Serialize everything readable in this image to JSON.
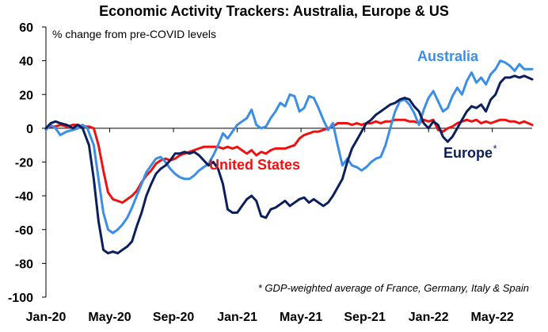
{
  "chart_data": {
    "type": "line",
    "title": "Economic Activity Trackers: Australia, Europe & US",
    "ylabel": "% change from pre-COVID levels",
    "footnote": "* GDP-weighted average of France, Germany, Italy & Spain",
    "ylim": [
      -100,
      60
    ],
    "yticks": [
      60,
      40,
      20,
      0,
      -20,
      -40,
      -60,
      -80,
      -100
    ],
    "xticks": [
      "Jan-20",
      "May-20",
      "Sep-20",
      "Jan-21",
      "May-21",
      "Sep-21",
      "Jan-22",
      "May-22"
    ],
    "xlim_months": [
      0,
      30.5
    ],
    "grid": false,
    "series": [
      {
        "name": "Australia",
        "label": "Australia",
        "color": "#3b8ee6",
        "points": [
          [
            0.0,
            -1
          ],
          [
            0.3,
            2
          ],
          [
            0.6,
            0
          ],
          [
            0.9,
            -4
          ],
          [
            1.3,
            -2
          ],
          [
            1.7,
            -1
          ],
          [
            2.0,
            0
          ],
          [
            2.3,
            2
          ],
          [
            2.6,
            0
          ],
          [
            3.0,
            -10
          ],
          [
            3.3,
            -30
          ],
          [
            3.6,
            -50
          ],
          [
            3.9,
            -60
          ],
          [
            4.2,
            -62
          ],
          [
            4.5,
            -60
          ],
          [
            4.8,
            -57
          ],
          [
            5.1,
            -53
          ],
          [
            5.4,
            -47
          ],
          [
            5.7,
            -40
          ],
          [
            6.0,
            -33
          ],
          [
            6.3,
            -26
          ],
          [
            6.6,
            -22
          ],
          [
            6.9,
            -18
          ],
          [
            7.2,
            -17
          ],
          [
            7.5,
            -20
          ],
          [
            7.8,
            -24
          ],
          [
            8.1,
            -27
          ],
          [
            8.4,
            -29
          ],
          [
            8.7,
            -30
          ],
          [
            9.0,
            -30
          ],
          [
            9.3,
            -28
          ],
          [
            9.6,
            -25
          ],
          [
            9.9,
            -23
          ],
          [
            10.2,
            -21
          ],
          [
            10.5,
            -16
          ],
          [
            10.8,
            -10
          ],
          [
            11.1,
            -3
          ],
          [
            11.4,
            -6
          ],
          [
            11.7,
            -2
          ],
          [
            12.0,
            2
          ],
          [
            12.3,
            4
          ],
          [
            12.6,
            6
          ],
          [
            12.9,
            11
          ],
          [
            13.2,
            2
          ],
          [
            13.5,
            0
          ],
          [
            13.8,
            1
          ],
          [
            14.1,
            6
          ],
          [
            14.4,
            10
          ],
          [
            14.7,
            15
          ],
          [
            15.0,
            13
          ],
          [
            15.3,
            20
          ],
          [
            15.6,
            19
          ],
          [
            15.9,
            10
          ],
          [
            16.2,
            12
          ],
          [
            16.5,
            19
          ],
          [
            16.8,
            18
          ],
          [
            17.1,
            12
          ],
          [
            17.4,
            5
          ],
          [
            17.7,
            -1
          ],
          [
            18.0,
            3
          ],
          [
            18.3,
            -10
          ],
          [
            18.6,
            -22
          ],
          [
            18.9,
            -18
          ],
          [
            19.2,
            -22
          ],
          [
            19.5,
            -23
          ],
          [
            19.8,
            -25
          ],
          [
            20.1,
            -23
          ],
          [
            20.4,
            -20
          ],
          [
            20.7,
            -18
          ],
          [
            21.0,
            -17
          ],
          [
            21.3,
            -10
          ],
          [
            21.6,
            0
          ],
          [
            21.9,
            10
          ],
          [
            22.2,
            16
          ],
          [
            22.5,
            17
          ],
          [
            22.8,
            14
          ],
          [
            23.1,
            9
          ],
          [
            23.4,
            2
          ],
          [
            23.7,
            11
          ],
          [
            24.0,
            18
          ],
          [
            24.3,
            22
          ],
          [
            24.6,
            16
          ],
          [
            24.9,
            10
          ],
          [
            25.2,
            12
          ],
          [
            25.5,
            19
          ],
          [
            25.8,
            24
          ],
          [
            26.1,
            20
          ],
          [
            26.4,
            28
          ],
          [
            26.7,
            33
          ],
          [
            27.0,
            27
          ],
          [
            27.3,
            30
          ],
          [
            27.6,
            26
          ],
          [
            27.9,
            32
          ],
          [
            28.2,
            35
          ],
          [
            28.5,
            40
          ],
          [
            28.8,
            39
          ],
          [
            29.1,
            37
          ],
          [
            29.4,
            34
          ],
          [
            29.7,
            38
          ],
          [
            30.0,
            35
          ],
          [
            30.5,
            35
          ]
        ]
      },
      {
        "name": "Europe",
        "label": "Europe*",
        "color": "#0b1f5c",
        "points": [
          [
            0.0,
            0
          ],
          [
            0.3,
            3
          ],
          [
            0.6,
            4
          ],
          [
            0.9,
            3
          ],
          [
            1.3,
            2
          ],
          [
            1.7,
            0
          ],
          [
            2.0,
            2
          ],
          [
            2.3,
            0
          ],
          [
            2.7,
            -10
          ],
          [
            3.0,
            -30
          ],
          [
            3.3,
            -55
          ],
          [
            3.6,
            -72
          ],
          [
            3.9,
            -74
          ],
          [
            4.2,
            -73
          ],
          [
            4.5,
            -74
          ],
          [
            4.8,
            -72
          ],
          [
            5.1,
            -70
          ],
          [
            5.4,
            -67
          ],
          [
            5.7,
            -58
          ],
          [
            6.0,
            -50
          ],
          [
            6.3,
            -40
          ],
          [
            6.6,
            -33
          ],
          [
            6.9,
            -27
          ],
          [
            7.2,
            -24
          ],
          [
            7.5,
            -22
          ],
          [
            7.8,
            -19
          ],
          [
            8.1,
            -15
          ],
          [
            8.4,
            -15
          ],
          [
            8.7,
            -14
          ],
          [
            9.0,
            -15
          ],
          [
            9.3,
            -14
          ],
          [
            9.6,
            -16
          ],
          [
            9.9,
            -19
          ],
          [
            10.2,
            -22
          ],
          [
            10.5,
            -20
          ],
          [
            10.8,
            -24
          ],
          [
            11.1,
            -33
          ],
          [
            11.4,
            -48
          ],
          [
            11.7,
            -50
          ],
          [
            12.0,
            -50
          ],
          [
            12.3,
            -46
          ],
          [
            12.6,
            -42
          ],
          [
            12.9,
            -40
          ],
          [
            13.2,
            -43
          ],
          [
            13.5,
            -52
          ],
          [
            13.8,
            -53
          ],
          [
            14.1,
            -48
          ],
          [
            14.4,
            -47
          ],
          [
            14.7,
            -45
          ],
          [
            15.0,
            -43
          ],
          [
            15.3,
            -46
          ],
          [
            15.6,
            -44
          ],
          [
            15.9,
            -42
          ],
          [
            16.2,
            -41
          ],
          [
            16.5,
            -44
          ],
          [
            16.8,
            -42
          ],
          [
            17.1,
            -44
          ],
          [
            17.4,
            -46
          ],
          [
            17.7,
            -44
          ],
          [
            18.0,
            -40
          ],
          [
            18.3,
            -35
          ],
          [
            18.6,
            -30
          ],
          [
            18.9,
            -20
          ],
          [
            19.2,
            -12
          ],
          [
            19.5,
            -7
          ],
          [
            19.8,
            -2
          ],
          [
            20.1,
            3
          ],
          [
            20.4,
            5
          ],
          [
            20.7,
            8
          ],
          [
            21.0,
            10
          ],
          [
            21.3,
            12
          ],
          [
            21.6,
            14
          ],
          [
            21.9,
            15
          ],
          [
            22.2,
            17
          ],
          [
            22.5,
            18
          ],
          [
            22.8,
            17
          ],
          [
            23.1,
            13
          ],
          [
            23.4,
            10
          ],
          [
            23.7,
            3
          ],
          [
            24.0,
            0
          ],
          [
            24.3,
            4
          ],
          [
            24.6,
            2
          ],
          [
            24.9,
            -5
          ],
          [
            25.2,
            -8
          ],
          [
            25.5,
            -5
          ],
          [
            25.8,
            0
          ],
          [
            26.1,
            5
          ],
          [
            26.4,
            10
          ],
          [
            26.7,
            13
          ],
          [
            27.0,
            12
          ],
          [
            27.3,
            14
          ],
          [
            27.6,
            10
          ],
          [
            27.9,
            17
          ],
          [
            28.2,
            20
          ],
          [
            28.5,
            27
          ],
          [
            28.8,
            30
          ],
          [
            29.1,
            30
          ],
          [
            29.4,
            31
          ],
          [
            29.7,
            30
          ],
          [
            30.0,
            31
          ],
          [
            30.5,
            29
          ]
        ]
      },
      {
        "name": "United States",
        "label": "United States",
        "color": "#ee1111",
        "points": [
          [
            0.0,
            0
          ],
          [
            0.3,
            1
          ],
          [
            0.6,
            1
          ],
          [
            0.9,
            2
          ],
          [
            1.3,
            1
          ],
          [
            1.7,
            2
          ],
          [
            2.0,
            2
          ],
          [
            2.3,
            1
          ],
          [
            2.7,
            1
          ],
          [
            3.0,
            0
          ],
          [
            3.3,
            -10
          ],
          [
            3.6,
            -25
          ],
          [
            3.9,
            -38
          ],
          [
            4.2,
            -42
          ],
          [
            4.5,
            -43
          ],
          [
            4.8,
            -44
          ],
          [
            5.1,
            -42
          ],
          [
            5.4,
            -40
          ],
          [
            5.7,
            -37
          ],
          [
            6.0,
            -32
          ],
          [
            6.3,
            -28
          ],
          [
            6.6,
            -25
          ],
          [
            6.9,
            -21
          ],
          [
            7.2,
            -19
          ],
          [
            7.5,
            -18
          ],
          [
            7.8,
            -19
          ],
          [
            8.1,
            -18
          ],
          [
            8.4,
            -16
          ],
          [
            8.7,
            -15
          ],
          [
            9.0,
            -14
          ],
          [
            9.3,
            -13
          ],
          [
            9.6,
            -12
          ],
          [
            9.9,
            -11
          ],
          [
            10.2,
            -11
          ],
          [
            10.5,
            -11
          ],
          [
            10.8,
            -11
          ],
          [
            11.1,
            -12
          ],
          [
            11.4,
            -11
          ],
          [
            11.7,
            -12
          ],
          [
            12.0,
            -11
          ],
          [
            12.3,
            -13
          ],
          [
            12.6,
            -15
          ],
          [
            12.9,
            -13
          ],
          [
            13.2,
            -16
          ],
          [
            13.5,
            -14
          ],
          [
            13.8,
            -15
          ],
          [
            14.1,
            -13
          ],
          [
            14.4,
            -12
          ],
          [
            14.7,
            -12
          ],
          [
            15.0,
            -12
          ],
          [
            15.3,
            -11
          ],
          [
            15.6,
            -10
          ],
          [
            15.9,
            -6
          ],
          [
            16.2,
            -4
          ],
          [
            16.5,
            -3
          ],
          [
            16.8,
            -2
          ],
          [
            17.1,
            -2
          ],
          [
            17.4,
            -1
          ],
          [
            17.7,
            0
          ],
          [
            18.0,
            1
          ],
          [
            18.3,
            3
          ],
          [
            18.6,
            3
          ],
          [
            18.9,
            3
          ],
          [
            19.2,
            2
          ],
          [
            19.5,
            3
          ],
          [
            19.8,
            2
          ],
          [
            20.1,
            3
          ],
          [
            20.4,
            3
          ],
          [
            20.7,
            4
          ],
          [
            21.0,
            3
          ],
          [
            21.3,
            4
          ],
          [
            21.6,
            4
          ],
          [
            21.9,
            5
          ],
          [
            22.2,
            5
          ],
          [
            22.5,
            5
          ],
          [
            22.8,
            4
          ],
          [
            23.1,
            4
          ],
          [
            23.4,
            3
          ],
          [
            23.7,
            5
          ],
          [
            24.0,
            4
          ],
          [
            24.3,
            5
          ],
          [
            24.6,
            -1
          ],
          [
            24.9,
            -2
          ],
          [
            25.2,
            0
          ],
          [
            25.5,
            1
          ],
          [
            25.8,
            3
          ],
          [
            26.1,
            4
          ],
          [
            26.4,
            5
          ],
          [
            26.7,
            4
          ],
          [
            27.0,
            5
          ],
          [
            27.3,
            3
          ],
          [
            27.6,
            4
          ],
          [
            27.9,
            3
          ],
          [
            28.2,
            4
          ],
          [
            28.5,
            5
          ],
          [
            28.8,
            5
          ],
          [
            29.1,
            4
          ],
          [
            29.4,
            4
          ],
          [
            29.7,
            3
          ],
          [
            30.0,
            4
          ],
          [
            30.5,
            2
          ]
        ]
      }
    ]
  }
}
